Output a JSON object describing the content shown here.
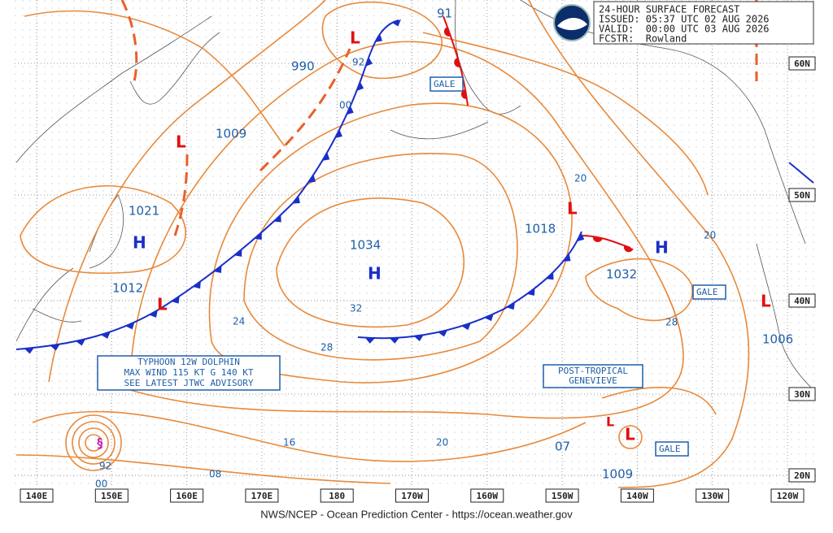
{
  "header": {
    "lines": [
      "24-HOUR SURFACE FORECAST",
      "ISSUED: 05:37 UTC 02 AUG 2026",
      "VALID:  00:00 UTC 03 AUG 2026",
      "FCSTR:  Rowland"
    ]
  },
  "highs": [
    {
      "symbol": "H",
      "pressure": "1021"
    },
    {
      "symbol": "H",
      "pressure": "1034"
    },
    {
      "symbol": "H",
      "pressure": "1032"
    }
  ],
  "lows": [
    {
      "symbol": "L",
      "pressure": "990"
    },
    {
      "symbol": "L",
      "pressure": "1009"
    },
    {
      "symbol": "L",
      "pressure": "1012"
    },
    {
      "symbol": "L",
      "pressure": "1018"
    },
    {
      "symbol": "L",
      "pressure": "1006"
    },
    {
      "symbol": "L",
      "pressure": "1009"
    },
    {
      "symbol": "L",
      "pressure": "07"
    }
  ],
  "other_pressures": [
    "91"
  ],
  "isobar_labels": [
    "92",
    "00",
    "24",
    "28",
    "32",
    "20",
    "16",
    "08",
    "20",
    "28",
    "20",
    "92",
    "00"
  ],
  "gale_labels": [
    "GALE",
    "GALE",
    "GALE"
  ],
  "typhoon_advisory": [
    "TYPHOON 12W DOLPHIN",
    "MAX WIND 115 KT G 140 KT",
    "SEE LATEST JTWC ADVISORY"
  ],
  "post_tropical": [
    "POST-TROPICAL",
    "GENEVIEVE"
  ],
  "latitudes": [
    "60N",
    "50N",
    "40N",
    "30N",
    "20N"
  ],
  "longitudes": [
    "140E",
    "150E",
    "160E",
    "170E",
    "180",
    "170W",
    "160W",
    "150W",
    "140W",
    "130W",
    "120W"
  ],
  "footer": "NWS/NCEP - Ocean Prediction Center - https://ocean.weather.gov"
}
